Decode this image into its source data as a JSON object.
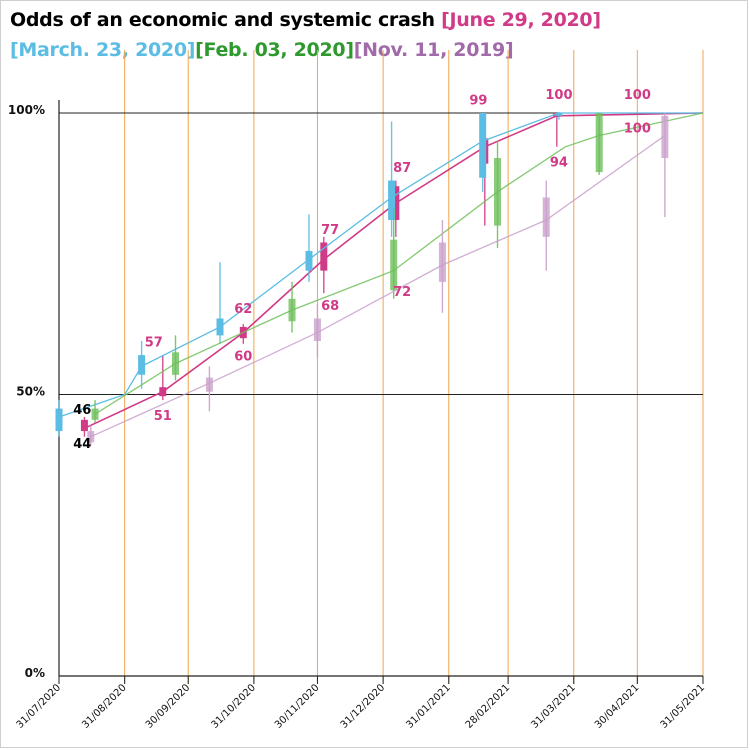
{
  "title": {
    "main": "Odds of an economic and systemic crash",
    "tag_june": "[June 29, 2020]",
    "tag_march": "[March. 23, 2020]",
    "tag_feb": "[Feb. 03, 2020]",
    "tag_nov": "[Nov. 11, 2019]"
  },
  "colors": {
    "title": "#000000",
    "june": "#d13a86",
    "march": "#5bbde4",
    "feb": "#6dbf5a",
    "feb_text": "#2e9a2e",
    "nov": "#c9a0cc",
    "nov_text": "#a16aa8",
    "month_lines": "#f0a64a",
    "ref_lines": "#222222"
  },
  "chart_data": {
    "type": "line",
    "title": "Odds of an economic and systemic crash",
    "xlabel": "",
    "ylabel": "",
    "ylim": [
      0,
      100
    ],
    "y_ticks": [
      {
        "value": 0,
        "label": "0%"
      },
      {
        "value": 50,
        "label": "50%"
      },
      {
        "value": 100,
        "label": "100%"
      }
    ],
    "x_ticks": [
      "31/07/2020",
      "31/08/2020",
      "30/09/2020",
      "31/10/2020",
      "30/11/2020",
      "31/12/2020",
      "31/01/2021",
      "28/02/2021",
      "31/03/2021",
      "30/04/2021",
      "31/05/2021"
    ],
    "xlim": [
      "2020-07-31",
      "2021-05-31"
    ],
    "grid": false,
    "reference_lines": [
      50,
      100
    ],
    "series": [
      {
        "name": "June 29, 2020",
        "color_key": "june",
        "points": [
          {
            "x": "2020-08-12",
            "y": 44,
            "open": 43.5,
            "close": 45.5,
            "low": 42.5,
            "high": 46
          },
          {
            "x": "2020-09-18",
            "y": 50.5,
            "open": 49.7,
            "close": 51.3,
            "low": 49,
            "high": 57
          },
          {
            "x": "2020-10-26",
            "y": 61,
            "open": 60,
            "close": 62,
            "low": 59,
            "high": 62.5
          },
          {
            "x": "2020-12-03",
            "y": 74,
            "open": 72,
            "close": 77,
            "low": 68,
            "high": 78
          },
          {
            "x": "2021-01-06",
            "y": 84,
            "open": 81,
            "close": 87,
            "low": 78,
            "high": 88
          },
          {
            "x": "2021-02-17",
            "y": 94,
            "open": 91,
            "close": 95.5,
            "low": 80,
            "high": 98
          },
          {
            "x": "2021-03-23",
            "y": 99.5,
            "open": 99.3,
            "close": 100,
            "low": 94,
            "high": 100
          },
          {
            "x": "2021-05-31",
            "y": 100
          }
        ]
      },
      {
        "name": "March. 23, 2020",
        "color_key": "march",
        "points": [
          {
            "x": "2020-07-31",
            "y": 46,
            "open": 43.5,
            "close": 47.5,
            "low": 42.5,
            "high": 49
          },
          {
            "x": "2020-08-31",
            "y": 50
          },
          {
            "x": "2020-09-08",
            "y": 55,
            "open": 53.5,
            "close": 57,
            "low": 51,
            "high": 59.5
          },
          {
            "x": "2020-10-15",
            "y": 62,
            "open": 60.5,
            "close": 63.5,
            "low": 59,
            "high": 73.5
          },
          {
            "x": "2020-11-26",
            "y": 74,
            "open": 72,
            "close": 75.5,
            "low": 70,
            "high": 82
          },
          {
            "x": "2021-01-04",
            "y": 85,
            "open": 81,
            "close": 88,
            "low": 78,
            "high": 98.5
          },
          {
            "x": "2021-02-16",
            "y": 95,
            "open": 88.5,
            "close": 100,
            "low": 86,
            "high": 100
          },
          {
            "x": "2021-03-24",
            "y": 100,
            "open": 99.5,
            "close": 100,
            "low": 98.8,
            "high": 100.2
          },
          {
            "x": "2021-05-31",
            "y": 100
          }
        ]
      },
      {
        "name": "Feb. 03, 2020",
        "color_key": "feb",
        "points": [
          {
            "x": "2020-08-17",
            "y": 46.5,
            "open": 45.5,
            "close": 47.5,
            "low": 45,
            "high": 49
          },
          {
            "x": "2020-09-24",
            "y": 55.5,
            "open": 53.5,
            "close": 57.5,
            "low": 52.5,
            "high": 60.5
          },
          {
            "x": "2020-11-18",
            "y": 65,
            "open": 63,
            "close": 67,
            "low": 61,
            "high": 70
          },
          {
            "x": "2021-01-05",
            "y": 72,
            "open": 68.5,
            "close": 77.5,
            "low": 67,
            "high": 83
          },
          {
            "x": "2021-02-23",
            "y": 86,
            "open": 80,
            "close": 92,
            "low": 76,
            "high": 95
          },
          {
            "x": "2021-03-27",
            "y": 94
          },
          {
            "x": "2021-04-12",
            "y": 96,
            "open": 89.5,
            "close": 100,
            "low": 89,
            "high": 100
          },
          {
            "x": "2021-05-31",
            "y": 100
          }
        ]
      },
      {
        "name": "Nov. 11, 2019",
        "color_key": "nov",
        "points": [
          {
            "x": "2020-08-15",
            "y": 42.5,
            "open": 41.5,
            "close": 43.5,
            "low": 41,
            "high": 44.5
          },
          {
            "x": "2020-10-10",
            "y": 52,
            "open": 50.5,
            "close": 53,
            "low": 47,
            "high": 55
          },
          {
            "x": "2020-11-30",
            "y": 61,
            "open": 59.5,
            "close": 63.5,
            "low": 56.5,
            "high": 66
          },
          {
            "x": "2021-01-28",
            "y": 73,
            "open": 70,
            "close": 77,
            "low": 64.5,
            "high": 81
          },
          {
            "x": "2021-03-18",
            "y": 81,
            "open": 78,
            "close": 85,
            "low": 72,
            "high": 88
          },
          {
            "x": "2021-05-13",
            "y": 96,
            "open": 92,
            "close": 99.5,
            "low": 81.5,
            "high": 100
          }
        ]
      }
    ],
    "data_labels": [
      {
        "text": "46",
        "x": "2020-08-11",
        "y": 46.5,
        "color_key": "title",
        "align": "middle"
      },
      {
        "text": "44",
        "x": "2020-08-11",
        "y": 40.5,
        "color_key": "title",
        "align": "middle"
      },
      {
        "text": "57",
        "x": "2020-09-18",
        "y": 58.5,
        "color_key": "june",
        "align": "end"
      },
      {
        "text": "51",
        "x": "2020-09-18",
        "y": 45.5,
        "color_key": "june",
        "align": "middle"
      },
      {
        "text": "62",
        "x": "2020-10-26",
        "y": 64.5,
        "color_key": "june",
        "align": "middle"
      },
      {
        "text": "60",
        "x": "2020-10-26",
        "y": 56,
        "color_key": "june",
        "align": "middle"
      },
      {
        "text": "77",
        "x": "2020-12-06",
        "y": 78.5,
        "color_key": "june",
        "align": "middle"
      },
      {
        "text": "68",
        "x": "2020-12-06",
        "y": 65,
        "color_key": "june",
        "align": "middle"
      },
      {
        "text": "87",
        "x": "2021-01-09",
        "y": 89.5,
        "color_key": "june",
        "align": "middle"
      },
      {
        "text": "72",
        "x": "2021-01-09",
        "y": 67.5,
        "color_key": "june",
        "align": "middle"
      },
      {
        "text": "99",
        "x": "2021-02-14",
        "y": 101.5,
        "color_key": "june",
        "align": "middle"
      },
      {
        "text": "100",
        "x": "2021-03-24",
        "y": 102.5,
        "color_key": "june",
        "align": "middle"
      },
      {
        "text": "94",
        "x": "2021-03-24",
        "y": 90.5,
        "color_key": "june",
        "align": "middle"
      },
      {
        "text": "100",
        "x": "2021-04-30",
        "y": 102.5,
        "color_key": "june",
        "align": "middle"
      },
      {
        "text": "100",
        "x": "2021-04-30",
        "y": 96.5,
        "color_key": "june",
        "align": "middle"
      }
    ]
  }
}
